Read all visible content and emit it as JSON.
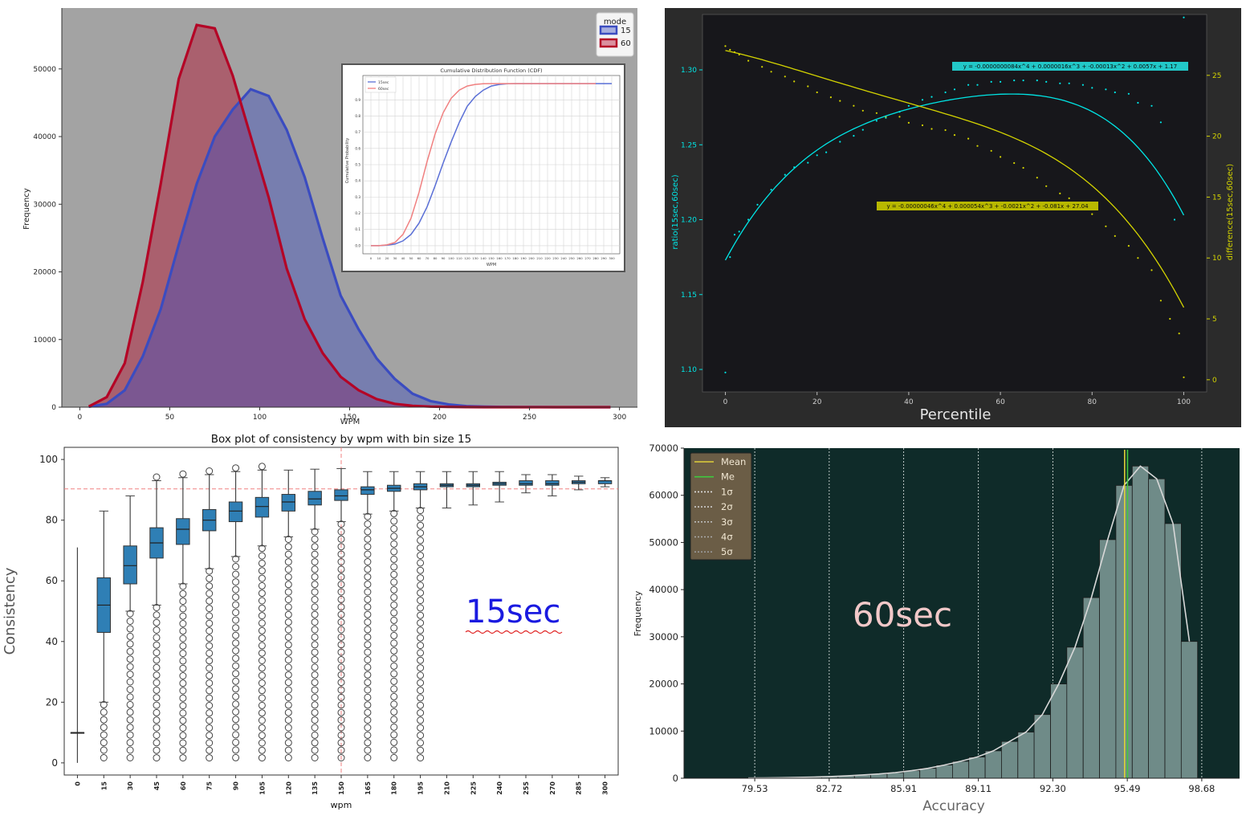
{
  "panels": {
    "top_left": {
      "ylabel": "Frequency",
      "xlabel": "WPM",
      "legend_title": "mode",
      "inset": {
        "title": "Cumulative Distribution Function (CDF)",
        "ylabel": "Cumulative Probability",
        "xlabel": "WPM"
      }
    },
    "top_right": {
      "xlabel": "Percentile",
      "ylabel_left": "ratio(15sec,60sec)",
      "ylabel_right": "difference(15sec,60sec)",
      "eq_cyan": "y = -0.0000000084x^4 + 0.0000016x^3 + -0.00013x^2 + 0.0057x + 1.17",
      "eq_yellow": "y = -0.00000046x^4 + 0.000054x^3 + -0.0021x^2 + -0.081x + 27.04"
    },
    "bottom_left": {
      "title": "Box plot of consistency by wpm with bin size 15",
      "xlabel": "wpm",
      "ylabel": "Consistency",
      "annotation": "15sec"
    },
    "bottom_right": {
      "xlabel": "Accuracy",
      "ylabel": "Frequency",
      "annotation": "60sec"
    }
  },
  "chart_data": [
    {
      "type": "area",
      "xlabel": "WPM",
      "ylabel": "Frequency",
      "xlim": [
        -10,
        310
      ],
      "ylim": [
        0,
        59000
      ],
      "xticks": [
        0,
        50,
        100,
        150,
        200,
        250,
        300
      ],
      "yticks": [
        0,
        10000,
        20000,
        30000,
        40000,
        50000
      ],
      "legend": {
        "title": "mode",
        "placement": "top-right"
      },
      "series": [
        {
          "name": "15",
          "color": "#3b4cc0",
          "x": [
            5,
            15,
            25,
            35,
            45,
            55,
            65,
            75,
            85,
            95,
            105,
            115,
            125,
            135,
            145,
            155,
            165,
            175,
            185,
            195,
            205,
            215,
            225,
            235,
            245,
            255,
            265,
            275,
            285,
            295
          ],
          "values": [
            50,
            500,
            2500,
            7500,
            14500,
            24000,
            33000,
            40000,
            44000,
            47000,
            46000,
            41000,
            34000,
            25000,
            16500,
            11500,
            7200,
            4200,
            2000,
            900,
            400,
            150,
            80,
            40,
            20,
            10,
            5,
            3,
            2,
            1
          ]
        },
        {
          "name": "60",
          "color": "#b40426",
          "x": [
            5,
            15,
            25,
            35,
            45,
            55,
            65,
            75,
            85,
            95,
            105,
            115,
            125,
            135,
            145,
            155,
            165,
            175,
            185,
            195,
            205,
            215,
            225,
            235,
            245,
            255,
            265,
            275,
            285,
            295
          ],
          "values": [
            100,
            1500,
            6500,
            18500,
            33000,
            48500,
            56500,
            56000,
            49000,
            40000,
            31000,
            20500,
            13000,
            8000,
            4500,
            2500,
            1200,
            500,
            200,
            80,
            30,
            10,
            5,
            2,
            1,
            1,
            0,
            0,
            0,
            0
          ]
        }
      ],
      "grid": false
    },
    {
      "type": "line",
      "title": "Cumulative Distribution Function (CDF)",
      "xlabel": "WPM",
      "ylabel": "Cumulative Probability",
      "xlim": [
        -10,
        310
      ],
      "ylim": [
        -0.05,
        1.05
      ],
      "xticks": [
        0,
        10,
        20,
        30,
        40,
        50,
        60,
        70,
        80,
        90,
        100,
        110,
        120,
        130,
        140,
        150,
        160,
        170,
        180,
        190,
        200,
        210,
        220,
        230,
        240,
        250,
        260,
        270,
        280,
        290,
        300
      ],
      "yticks": [
        0.0,
        0.1,
        0.2,
        0.3,
        0.4,
        0.5,
        0.6,
        0.7,
        0.8,
        0.9
      ],
      "legend": {
        "placement": "top-left"
      },
      "grid": true,
      "series": [
        {
          "name": "15sec",
          "color": "#5a6fd6",
          "x": [
            0,
            10,
            20,
            30,
            40,
            50,
            60,
            70,
            80,
            90,
            100,
            110,
            120,
            130,
            140,
            150,
            160,
            170,
            180,
            190,
            200,
            220,
            240,
            260,
            280,
            300
          ],
          "values": [
            0.0,
            0.0,
            0.003,
            0.01,
            0.03,
            0.07,
            0.14,
            0.24,
            0.37,
            0.51,
            0.64,
            0.76,
            0.86,
            0.92,
            0.96,
            0.985,
            0.995,
            0.999,
            1.0,
            1.0,
            1.0,
            1.0,
            1.0,
            1.0,
            1.0,
            1.0
          ]
        },
        {
          "name": "60sec",
          "color": "#f08080",
          "x": [
            0,
            10,
            20,
            30,
            40,
            50,
            60,
            70,
            80,
            90,
            100,
            110,
            120,
            130,
            140,
            150,
            160,
            170,
            180,
            190,
            200,
            220,
            240,
            260,
            280
          ],
          "values": [
            0.0,
            0.0,
            0.005,
            0.02,
            0.07,
            0.17,
            0.33,
            0.52,
            0.69,
            0.82,
            0.91,
            0.96,
            0.985,
            0.995,
            0.999,
            1.0,
            1.0,
            1.0,
            1.0,
            1.0,
            1.0,
            1.0,
            1.0,
            1.0,
            1.0
          ]
        }
      ]
    },
    {
      "type": "scatter",
      "xlabel": "Percentile",
      "ylabel": "ratio(15sec,60sec)",
      "ylabel_right": "difference(15sec,60sec)",
      "xlim": [
        -5,
        105
      ],
      "ylim_left": [
        1.085,
        1.337
      ],
      "ylim_right": [
        -1,
        30
      ],
      "xticks": [
        0,
        20,
        40,
        60,
        80,
        100
      ],
      "yticks_left": [
        1.1,
        1.15,
        1.2,
        1.25,
        1.3
      ],
      "yticks_right": [
        0,
        5,
        10,
        15,
        20,
        25
      ],
      "series": [
        {
          "name": "",
          "color": "#00e5e5",
          "axis": "left",
          "x": [
            0,
            1,
            2,
            3,
            5,
            7,
            10,
            13,
            15,
            18,
            20,
            22,
            25,
            28,
            30,
            33,
            35,
            38,
            40,
            43,
            45,
            48,
            50,
            53,
            55,
            58,
            60,
            63,
            65,
            68,
            70,
            73,
            75,
            78,
            80,
            83,
            85,
            88,
            90,
            93,
            95,
            98,
            100
          ],
          "values": [
            1.098,
            1.175,
            1.19,
            1.192,
            1.2,
            1.21,
            1.22,
            1.23,
            1.235,
            1.238,
            1.243,
            1.245,
            1.252,
            1.256,
            1.26,
            1.266,
            1.268,
            1.272,
            1.276,
            1.28,
            1.282,
            1.285,
            1.287,
            1.29,
            1.29,
            1.292,
            1.292,
            1.293,
            1.293,
            1.293,
            1.292,
            1.291,
            1.291,
            1.29,
            1.288,
            1.287,
            1.285,
            1.284,
            1.278,
            1.276,
            1.265,
            1.2,
            1.335
          ]
        },
        {
          "name": "",
          "color": "#d4d400",
          "axis": "right",
          "x": [
            0,
            1,
            2,
            3,
            5,
            8,
            10,
            13,
            15,
            18,
            20,
            23,
            25,
            28,
            30,
            33,
            35,
            38,
            40,
            43,
            45,
            48,
            50,
            53,
            55,
            58,
            60,
            63,
            65,
            68,
            70,
            73,
            75,
            78,
            80,
            83,
            85,
            88,
            90,
            93,
            95,
            97,
            99,
            100
          ],
          "values": [
            27.4,
            27.1,
            26.9,
            26.7,
            26.2,
            25.7,
            25.3,
            24.9,
            24.5,
            24.1,
            23.6,
            23.2,
            22.9,
            22.5,
            22.1,
            21.9,
            21.6,
            21.6,
            21.1,
            20.9,
            20.6,
            20.5,
            20.1,
            19.8,
            19.2,
            18.8,
            18.3,
            17.8,
            17.4,
            16.6,
            15.9,
            15.3,
            14.9,
            14.2,
            13.6,
            12.6,
            11.8,
            11.0,
            10.0,
            9.0,
            6.5,
            5.0,
            3.8,
            0.2
          ]
        }
      ],
      "grid": false
    },
    {
      "type": "box",
      "title": "Box plot of consistency by wpm with bin size 15",
      "xlabel": "wpm",
      "ylabel": "Consistency",
      "ylim": [
        -4,
        104
      ],
      "yticks": [
        0,
        20,
        40,
        60,
        80,
        100
      ],
      "categories": [
        "0",
        "15",
        "30",
        "45",
        "60",
        "75",
        "90",
        "105",
        "120",
        "135",
        "150",
        "165",
        "180",
        "195",
        "210",
        "225",
        "240",
        "255",
        "270",
        "285",
        "300"
      ],
      "reference_lines": {
        "x": 150,
        "y": 90.3
      },
      "median": [
        10,
        52,
        65,
        72.5,
        77,
        80,
        83,
        84.5,
        86,
        87,
        88,
        90,
        90.5,
        91,
        91.5,
        91.5,
        92,
        92,
        92,
        92.5,
        93
      ],
      "q1": [
        10,
        43,
        59,
        67.5,
        72,
        76.5,
        79.5,
        81,
        83,
        85,
        86.5,
        88.5,
        89.5,
        90,
        91,
        91,
        91.5,
        91.5,
        91.5,
        92,
        92
      ],
      "q3": [
        10,
        61,
        71.5,
        77.5,
        80.5,
        83.5,
        86,
        87.5,
        88.5,
        89.5,
        90,
        91,
        91.5,
        92,
        92,
        92,
        92.5,
        93,
        93,
        93,
        93
      ],
      "whisker_low": [
        0,
        20,
        50,
        52,
        59,
        64,
        68,
        71.5,
        74.5,
        77,
        79.5,
        82,
        83,
        84,
        84,
        85,
        86,
        89,
        88,
        90,
        91
      ],
      "whisker_high": [
        71,
        83,
        88,
        93,
        94,
        95,
        96,
        96.5,
        96.5,
        96.8,
        97,
        96,
        96,
        96,
        96,
        96,
        96,
        95,
        95,
        94.5,
        94
      ]
    },
    {
      "type": "histogram",
      "xlabel": "Accuracy",
      "ylabel": "Frequency",
      "ylim": [
        0,
        70000
      ],
      "yticks": [
        0,
        10000,
        20000,
        30000,
        40000,
        50000,
        60000,
        70000
      ],
      "xticks": [
        79.53,
        82.72,
        85.91,
        89.11,
        92.3,
        95.49,
        98.68
      ],
      "legend": {
        "placement": "top-left",
        "entries": [
          "Mean",
          "Me",
          "1σ",
          "2σ",
          "3σ",
          "4σ",
          "5σ"
        ]
      },
      "mean": 95.1,
      "median": 95.5,
      "bin_edges": [
        78.9,
        79.6,
        80.3,
        81.0,
        81.7,
        82.4,
        83.1,
        83.8,
        84.5,
        85.2,
        85.9,
        86.6,
        87.3,
        88.0,
        88.7,
        89.4,
        90.1,
        90.8,
        91.5,
        92.2,
        92.9,
        93.6,
        94.3,
        95.0,
        95.7,
        96.4,
        97.1,
        97.8,
        98.5,
        99.2,
        99.9
      ],
      "values": [
        50,
        80,
        120,
        180,
        250,
        350,
        500,
        700,
        900,
        1200,
        1600,
        2100,
        2800,
        3600,
        4500,
        5800,
        7800,
        9800,
        13500,
        20000,
        27800,
        38300,
        50600,
        62100,
        66200,
        63500,
        54000,
        29000,
        0,
        0
      ]
    }
  ]
}
